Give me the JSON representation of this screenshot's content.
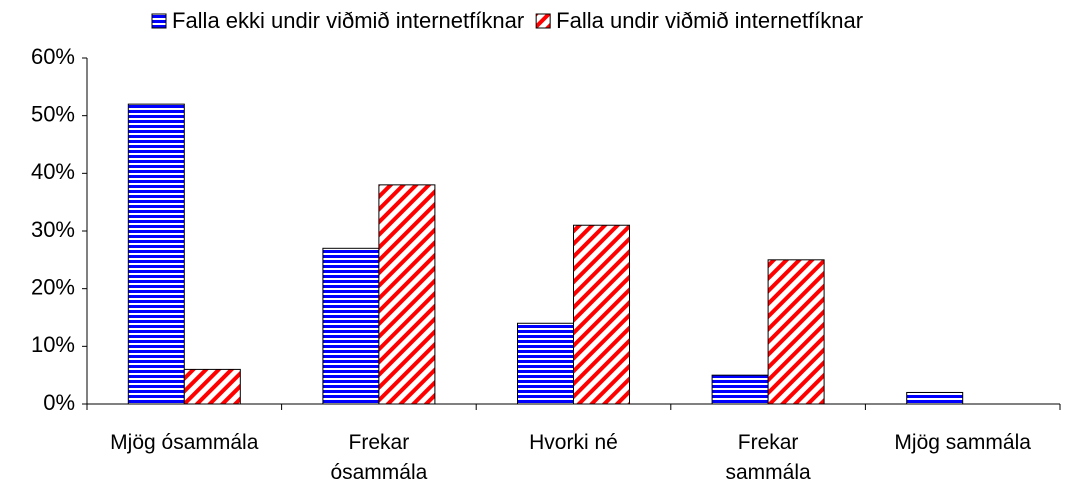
{
  "chart_data": {
    "type": "bar",
    "categories": [
      "Mjög ósammála",
      "Frekar ósammála",
      "Hvorki né",
      "Frekar sammála",
      "Mjög sammála"
    ],
    "series": [
      {
        "name": "Falla ekki undir viðmið internetfíknar",
        "color": "#0000ff",
        "values": [
          52,
          27,
          14,
          5,
          2
        ]
      },
      {
        "name": "Falla undir viðmið internetfíknar",
        "color": "#ff0000",
        "values": [
          6,
          38,
          31,
          25,
          0
        ]
      }
    ],
    "ylim": [
      0,
      60
    ],
    "yticks": [
      {
        "value": 0,
        "label": "0%"
      },
      {
        "value": 10,
        "label": "10%"
      },
      {
        "value": 20,
        "label": "20%"
      },
      {
        "value": 30,
        "label": "30%"
      },
      {
        "value": 40,
        "label": "40%"
      },
      {
        "value": 50,
        "label": "50%"
      },
      {
        "value": 60,
        "label": "60%"
      }
    ],
    "legend": "top",
    "grid": false
  }
}
